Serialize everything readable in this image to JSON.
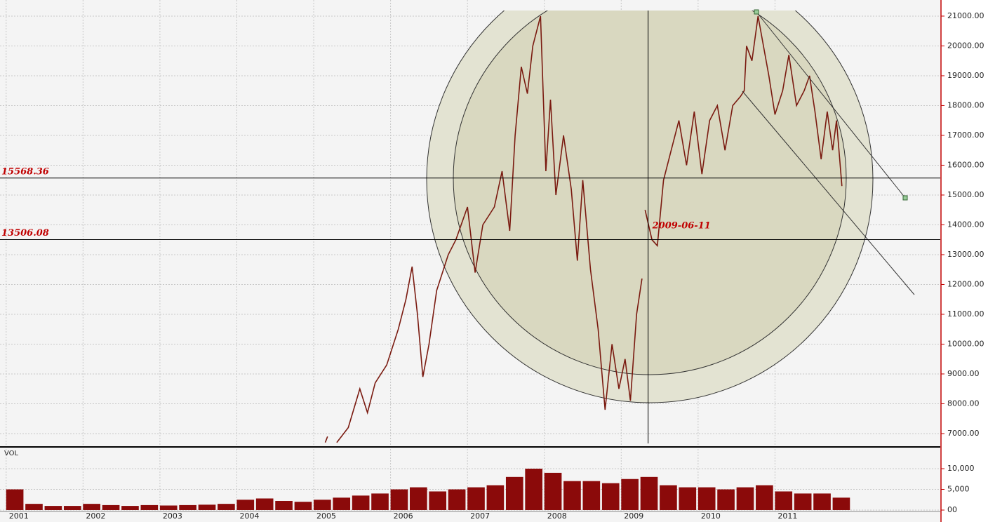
{
  "chart_data": [
    {
      "type": "line",
      "x": [
        2005.15,
        2005.18,
        2005.24,
        2005.3,
        2005.45,
        2005.6,
        2005.7,
        2005.8,
        2005.95,
        2006.1,
        2006.2,
        2006.28,
        2006.35,
        2006.42,
        2006.5,
        2006.6,
        2006.75,
        2006.85,
        2007.0,
        2007.1,
        2007.2,
        2007.35,
        2007.45,
        2007.55,
        2007.62,
        2007.7,
        2007.78,
        2007.85,
        2007.95,
        2008.02,
        2008.08,
        2008.15,
        2008.25,
        2008.35,
        2008.43,
        2008.5,
        2008.6,
        2008.7,
        2008.79,
        2008.88,
        2008.97,
        2009.05,
        2009.12,
        2009.2,
        2009.27,
        2009.29,
        2009.31,
        2009.4,
        2009.47,
        2009.55,
        2009.65,
        2009.75,
        2009.85,
        2009.95,
        2010.05,
        2010.15,
        2010.25,
        2010.35,
        2010.45,
        2010.55,
        2010.6,
        2010.63,
        2010.7,
        2010.78,
        2010.85,
        2010.92,
        2011.0,
        2011.1,
        2011.18,
        2011.28,
        2011.38,
        2011.45,
        2011.52,
        2011.6,
        2011.68,
        2011.75,
        2011.8,
        2011.87
      ],
      "series": [
        {
          "color": "#7a1a10",
          "values": [
            6700,
            6900,
            null,
            6700,
            7200,
            8500,
            7700,
            8700,
            9300,
            10500,
            11500,
            12600,
            11000,
            8900,
            10000,
            11800,
            13000,
            13500,
            14600,
            12400,
            14000,
            14600,
            15800,
            13800,
            17000,
            19300,
            18400,
            20000,
            21000,
            15800,
            18200,
            15000,
            17000,
            15200,
            12800,
            15500,
            12500,
            10500,
            7800,
            10000,
            8500,
            9500,
            8100,
            11000,
            12200,
            null,
            14500,
            13500,
            13300,
            15500,
            16500,
            17500,
            16000,
            17800,
            15700,
            17500,
            18000,
            16500,
            18000,
            18300,
            18500,
            20000,
            19500,
            21000,
            20000,
            19000,
            17700,
            18500,
            19700,
            18000,
            18500,
            19000,
            17800,
            16200,
            17800,
            16500,
            17500,
            15300
          ]
        }
      ],
      "xlim": [
        2000.92,
        2013.15
      ],
      "xticks": [
        2001,
        2002,
        2003,
        2004,
        2005,
        2006,
        2007,
        2008,
        2009,
        2010,
        2011
      ],
      "ylim": [
        6670,
        21540
      ],
      "yticks": [
        {
          "value": 7000,
          "label": "7000.00"
        },
        {
          "value": 8000,
          "label": "8000.00"
        },
        {
          "value": 9000,
          "label": "9000.00"
        },
        {
          "value": 10000,
          "label": "10000.00"
        },
        {
          "value": 11000,
          "label": "11000.00"
        },
        {
          "value": 12000,
          "label": "12000.00"
        },
        {
          "value": 13000,
          "label": "13000.00"
        },
        {
          "value": 14000,
          "label": "14000.00"
        },
        {
          "value": 15000,
          "label": "15000.00"
        },
        {
          "value": 16000,
          "label": "16000.00"
        },
        {
          "value": 17000,
          "label": "17000.00"
        },
        {
          "value": 18000,
          "label": "18000.00"
        },
        {
          "value": 19000,
          "label": "19000.00"
        },
        {
          "value": 20000,
          "label": "20000.00"
        },
        {
          "value": 21000,
          "label": "21000.00"
        }
      ],
      "levels": [
        15568.36,
        13506.08
      ],
      "marker_date": "2009-06-11",
      "grid": true
    },
    {
      "type": "bar",
      "title": "VOL",
      "x": [
        2001.0,
        2001.25,
        2001.5,
        2001.75,
        2002.0,
        2002.25,
        2002.5,
        2002.75,
        2003.0,
        2003.25,
        2003.5,
        2003.75,
        2004.0,
        2004.25,
        2004.5,
        2004.75,
        2005.0,
        2005.25,
        2005.5,
        2005.75,
        2006.0,
        2006.25,
        2006.5,
        2006.75,
        2007.0,
        2007.25,
        2007.5,
        2007.75,
        2008.0,
        2008.25,
        2008.5,
        2008.75,
        2009.0,
        2009.25,
        2009.5,
        2009.75,
        2010.0,
        2010.25,
        2010.5,
        2010.75,
        2011.0,
        2011.25,
        2011.5,
        2011.75
      ],
      "series": [
        {
          "color": "#8b0a0a",
          "values": [
            5000,
            1500,
            1000,
            1000,
            1500,
            1200,
            1000,
            1200,
            1100,
            1200,
            1300,
            1500,
            2500,
            2800,
            2200,
            2000,
            2500,
            3000,
            3500,
            4000,
            5000,
            5500,
            4500,
            5000,
            5500,
            6000,
            8000,
            10000,
            9000,
            7000,
            7000,
            6500,
            7500,
            8000,
            6000,
            5500,
            5500,
            5000,
            5500,
            6000,
            4500,
            4000,
            4000,
            3000
          ]
        }
      ],
      "ylim": [
        -850,
        14750
      ],
      "yticks": [
        {
          "value": 0,
          "label": "00"
        },
        {
          "value": 5000,
          "label": "5,000"
        },
        {
          "value": 10000,
          "label": "10,000"
        }
      ]
    }
  ]
}
